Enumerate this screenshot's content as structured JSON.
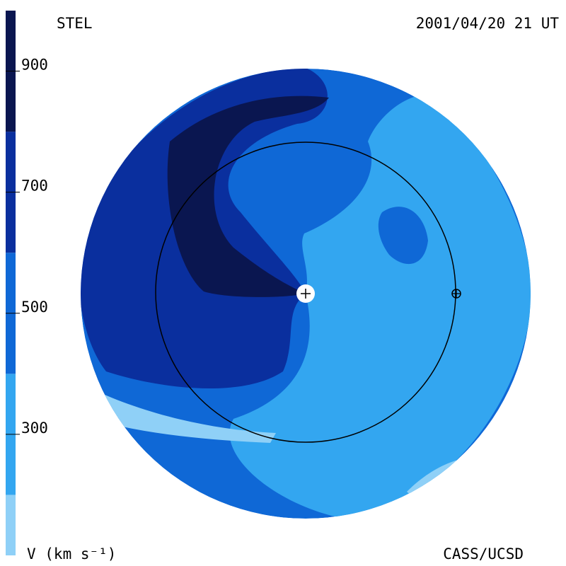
{
  "chart_data": {
    "type": "contour",
    "title": "STEL",
    "subtitle": "2001/04/20 21 UT",
    "colorbar_label": "V (km s⁻¹)",
    "source": "CASS/UCSD",
    "clim": [
      100,
      1000
    ],
    "cticks": [
      300,
      500,
      700,
      900
    ],
    "levels": [
      100,
      200,
      400,
      600,
      800,
      1000
    ],
    "colors": [
      "#8fd0f7",
      "#33a6f0",
      "#0f68d6",
      "#0a2f9e",
      "#0a1650"
    ]
  }
}
